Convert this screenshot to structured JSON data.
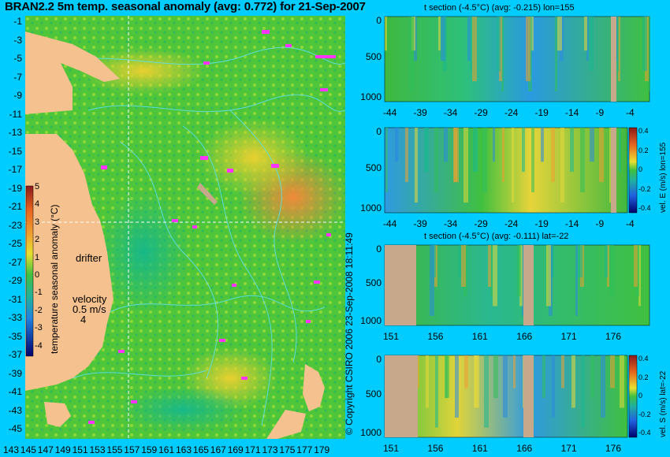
{
  "title": "BRAN2.2 5m temp. seasonal anomaly (avg: 0.772) for 21-Sep-2007",
  "copyright": "© Copyright CSIRO 2006  23-Sep-2008 18:11:49",
  "colors": {
    "background": "#00ccff",
    "land": "#f5c18e",
    "bathy_land": "#c8a88a",
    "vector": "#ff33ff"
  },
  "map": {
    "lat_ticks": [
      "-1",
      "-3",
      "-5",
      "-7",
      "-9",
      "-11",
      "-13",
      "-15",
      "-17",
      "-19",
      "-21",
      "-23",
      "-25",
      "-27",
      "-29",
      "-31",
      "-33",
      "-35",
      "-37",
      "-39",
      "-41",
      "-43",
      "-45"
    ],
    "lon_ticks": [
      "143",
      "145",
      "147",
      "149",
      "151",
      "153",
      "155",
      "157",
      "159",
      "161",
      "163",
      "165",
      "167",
      "169",
      "171",
      "173",
      "175",
      "177",
      "179"
    ],
    "crosshair_lon": 155,
    "crosshair_lat": -22,
    "colorbar": {
      "label": "temperature seasonal anomaly (°C)",
      "ticks": [
        "5",
        "4",
        "3",
        "2",
        "1",
        "0",
        "-1",
        "-2",
        "-3",
        "-4"
      ]
    },
    "drifter_label": "drifter",
    "velocity_label": "velocity",
    "velocity_value": "0.5 m/s",
    "velocity_value2": "4"
  },
  "panels": [
    {
      "id": "t-lon",
      "title": "t section (-4.5°C) (avg: -0.215) lon=155",
      "xticks": [
        "-44",
        "-39",
        "-34",
        "-29",
        "-24",
        "-19",
        "-14",
        "-9",
        "-4"
      ],
      "yticks": [
        "0",
        "500",
        "1000"
      ]
    },
    {
      "id": "u-lon",
      "title": "",
      "xticks": [
        "-44",
        "-39",
        "-34",
        "-29",
        "-24",
        "-19",
        "-14",
        "-9",
        "-4"
      ],
      "yticks": [
        "0",
        "500",
        "1000"
      ],
      "cbar_label": "vel. E (m/s) lon=155",
      "cbar_ticks": [
        "0.4",
        "0.2",
        "0",
        "-0.2",
        "-0.4"
      ]
    },
    {
      "id": "t-lat",
      "title": "t section (-4.5°C) (avg: -0.111) lat=-22",
      "xticks": [
        "151",
        "156",
        "161",
        "166",
        "171",
        "176"
      ],
      "yticks": [
        "0",
        "500",
        "1000"
      ]
    },
    {
      "id": "v-lat",
      "title": "",
      "xticks": [
        "151",
        "156",
        "161",
        "166",
        "171",
        "176"
      ],
      "yticks": [
        "0",
        "500",
        "1000"
      ],
      "cbar_label": "vel. S (m/s) lat=-22",
      "cbar_ticks": [
        "0.4",
        "0.2",
        "0",
        "-0.2",
        "-0.4"
      ]
    }
  ],
  "chart_data": [
    {
      "type": "heatmap",
      "title": "BRAN2.2 5m temp. seasonal anomaly (avg: 0.772) for 21-Sep-2007",
      "xlabel": "",
      "ylabel": "",
      "xlim": [
        143,
        180
      ],
      "ylim": [
        -45,
        0
      ],
      "zlabel": "temperature seasonal anomaly (°C)",
      "zlim": [
        -4,
        5
      ],
      "mean": 0.772
    },
    {
      "type": "heatmap",
      "title": "t section (-4.5°C) (avg: -0.215) lon=155",
      "xlim": [
        -46,
        -1
      ],
      "ylim": [
        1050,
        0
      ],
      "mean": -0.215
    },
    {
      "type": "heatmap",
      "title": "",
      "xlim": [
        -46,
        -1
      ],
      "ylim": [
        1050,
        0
      ],
      "zlabel": "vel. E (m/s) lon=155",
      "zlim": [
        -0.4,
        0.4
      ]
    },
    {
      "type": "heatmap",
      "title": "t section (-4.5°C) (avg: -0.111) lat=-22",
      "xlim": [
        150,
        180
      ],
      "ylim": [
        1050,
        0
      ],
      "mean": -0.111
    },
    {
      "type": "heatmap",
      "title": "",
      "xlim": [
        150,
        180
      ],
      "ylim": [
        1050,
        0
      ],
      "zlabel": "vel. S (m/s) lat=-22",
      "zlim": [
        -0.4,
        0.4
      ]
    }
  ]
}
